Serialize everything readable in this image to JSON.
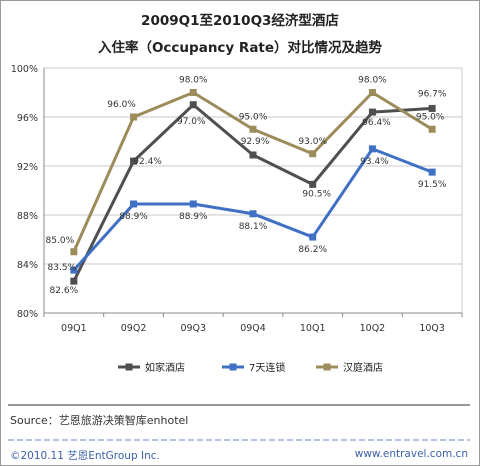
{
  "title_line1": "2009Q1至2010Q3经济型酒店",
  "title_line2": "入住率（Occupancy Rate）对比情况及趋势",
  "source": "Source：艺恩旅游决策智库enhotel",
  "footer_left": "©2010.11  艺恩EntGroup Inc.",
  "footer_right": "www.entravel.com.cn",
  "colors": {
    "如家酒店": "#4f4f4f",
    "7天连锁": "#3f70c4",
    "汉庭酒店": "#9b8c5a",
    "grid": "#c9c9c9",
    "axis_text": "#333333"
  },
  "chart_data": {
    "type": "line",
    "title": "2009Q1至2010Q3经济型酒店入住率（Occupancy Rate）对比情况及趋势",
    "categories": [
      "09Q1",
      "09Q2",
      "09Q3",
      "09Q4",
      "10Q1",
      "10Q2",
      "10Q3"
    ],
    "y_ticks": [
      "80%",
      "84%",
      "88%",
      "92%",
      "96%",
      "100%"
    ],
    "ylim": [
      80,
      100
    ],
    "grid": true,
    "legend_position": "bottom",
    "series": [
      {
        "name": "如家酒店",
        "marker": "square",
        "values": [
          82.6,
          92.4,
          97.0,
          92.9,
          90.5,
          96.4,
          96.7
        ],
        "labels": [
          "82.6%",
          "92.4%",
          "97.0%",
          "92.9%",
          "90.5%",
          "96.4%",
          "96.7%"
        ]
      },
      {
        "name": "7天连锁",
        "marker": "square",
        "values": [
          83.5,
          88.9,
          88.9,
          88.1,
          86.2,
          93.4,
          91.5
        ],
        "labels": [
          "83.5%",
          "88.9%",
          "88.9%",
          "88.1%",
          "86.2%",
          "93.4%",
          "91.5%"
        ]
      },
      {
        "name": "汉庭酒店",
        "marker": "square",
        "values": [
          85.0,
          96.0,
          98.0,
          95.0,
          93.0,
          98.0,
          95.0
        ],
        "labels": [
          "85.0%",
          "96.0%",
          "98.0%",
          "95.0%",
          "93.0%",
          "98.0%",
          "95.0%"
        ]
      }
    ]
  }
}
